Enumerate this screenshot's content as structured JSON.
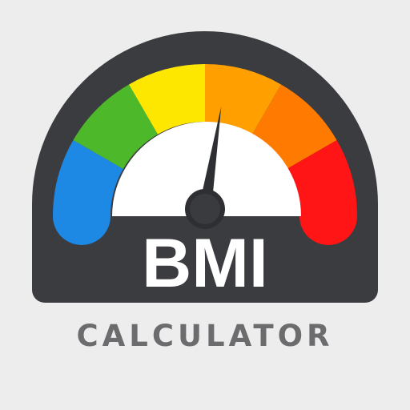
{
  "logo": {
    "title_text": "BMI",
    "subtitle_text": "CALCULATOR",
    "colors": {
      "background": "#ededed",
      "housing": "#3b3c40",
      "dial_face": "#ffffff",
      "needle": "#2e2f33",
      "subtitle": "#6c6c6f",
      "scale_segments": [
        "#1e88e5",
        "#4cb82a",
        "#fde600",
        "#ffa000",
        "#ff7a00",
        "#ff1515"
      ]
    },
    "gauge_level": 0.55
  }
}
